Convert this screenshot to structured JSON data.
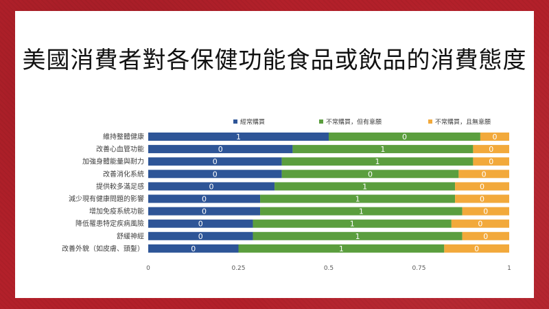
{
  "slide_title": "美國消費者對各保健功能食品或飲品的消費態度",
  "chart_data": {
    "type": "bar",
    "orientation": "horizontal",
    "stacked": true,
    "title": "",
    "xlim": [
      0,
      1
    ],
    "x_ticks": [
      "0",
      "0.25",
      "0.5",
      "0.75",
      "1"
    ],
    "legend_position": "top",
    "categories": [
      "維持整體健康",
      "改善心血管功能",
      "加強身體能量與耐力",
      "改善消化系統",
      "提供較多滿足感",
      "減少現有健康問題的影響",
      "增加免疫系統功能",
      "降低罹患特定疾病風險",
      "舒緩神經",
      "改善外貌（如皮膚、頭髮）"
    ],
    "series": [
      {
        "name": "經常購買",
        "color": "#2e5597",
        "values": [
          0.5,
          0.4,
          0.37,
          0.37,
          0.35,
          0.31,
          0.31,
          0.29,
          0.29,
          0.25
        ],
        "labels": [
          "1",
          "0",
          "0",
          "0",
          "0",
          "0",
          "0",
          "0",
          "0",
          "0"
        ]
      },
      {
        "name": "不常購買，但有意願",
        "color": "#5b9e3e",
        "values": [
          0.42,
          0.5,
          0.53,
          0.49,
          0.5,
          0.54,
          0.56,
          0.55,
          0.58,
          0.57
        ],
        "labels": [
          "0",
          "1",
          "1",
          "0",
          "1",
          "1",
          "1",
          "1",
          "1",
          "1"
        ]
      },
      {
        "name": "不常購買，且無意願",
        "color": "#f2a93b",
        "values": [
          0.08,
          0.1,
          0.1,
          0.14,
          0.15,
          0.15,
          0.13,
          0.16,
          0.13,
          0.18
        ],
        "labels": [
          "0",
          "0",
          "0",
          "0",
          "0",
          "0",
          "0",
          "0",
          "0",
          "0"
        ]
      }
    ]
  }
}
